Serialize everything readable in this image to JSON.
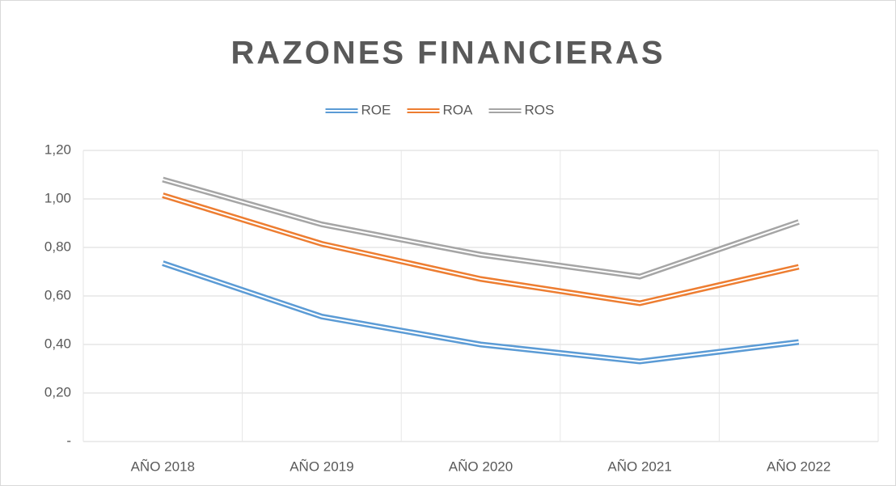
{
  "chart_data": {
    "type": "line",
    "title": "RAZONES FINANCIERAS",
    "categories": [
      "AÑO 2018",
      "AÑO 2019",
      "AÑO 2020",
      "AÑO 2021",
      "AÑO 2022"
    ],
    "series": [
      {
        "name": "ROE",
        "color": "#5b9bd5",
        "values": [
          0.735,
          0.515,
          0.4,
          0.33,
          0.41
        ]
      },
      {
        "name": "ROA",
        "color": "#ed7d31",
        "values": [
          1.015,
          0.815,
          0.67,
          0.57,
          0.72
        ]
      },
      {
        "name": "ROS",
        "color": "#a5a5a5",
        "values": [
          1.08,
          0.895,
          0.77,
          0.68,
          0.905
        ]
      }
    ],
    "ylim": [
      0,
      1.2
    ],
    "yticks": [
      {
        "value": 0,
        "label": "-"
      },
      {
        "value": 0.2,
        "label": "0,20"
      },
      {
        "value": 0.4,
        "label": "0,40"
      },
      {
        "value": 0.6,
        "label": "0,60"
      },
      {
        "value": 0.8,
        "label": "0,80"
      },
      {
        "value": 1.0,
        "label": "1,00"
      },
      {
        "value": 1.2,
        "label": "1,20"
      }
    ],
    "grid": true,
    "legend": "top"
  }
}
